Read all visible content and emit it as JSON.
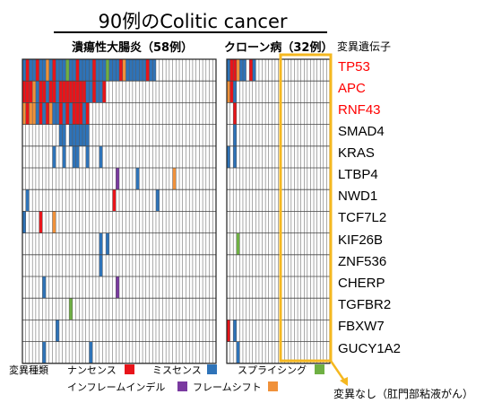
{
  "title": "90例のColitic cancer",
  "groups": {
    "uc": {
      "label": "潰瘍性大腸炎（58例）",
      "count": 58
    },
    "cd": {
      "label": "クローン病（32例）",
      "count": 32
    }
  },
  "gene_column_header": "変異遺伝子",
  "genes": [
    {
      "name": "TP53",
      "color": "#ff0000"
    },
    {
      "name": "APC",
      "color": "#ff0000"
    },
    {
      "name": "RNF43",
      "color": "#ff0000"
    },
    {
      "name": "SMAD4",
      "color": "#000000"
    },
    {
      "name": "KRAS",
      "color": "#000000"
    },
    {
      "name": "LTBP4",
      "color": "#000000"
    },
    {
      "name": "NWD1",
      "color": "#000000"
    },
    {
      "name": "TCF7L2",
      "color": "#000000"
    },
    {
      "name": "KIF26B",
      "color": "#000000"
    },
    {
      "name": "ZNF536",
      "color": "#000000"
    },
    {
      "name": "CHERP",
      "color": "#000000"
    },
    {
      "name": "TGFBR2",
      "color": "#000000"
    },
    {
      "name": "FBXW7",
      "color": "#000000"
    },
    {
      "name": "GUCY1A2",
      "color": "#000000"
    }
  ],
  "legend": {
    "heading": "変異種類",
    "items": [
      {
        "key": "N",
        "label": "ナンセンス",
        "color": "#e8141a"
      },
      {
        "key": "M",
        "label": "ミスセンス",
        "color": "#2e73b8"
      },
      {
        "key": "S",
        "label": "スプライシング",
        "color": "#6fb043"
      },
      {
        "key": "I",
        "label": "インフレームインデル",
        "color": "#7a3aa0"
      },
      {
        "key": "F",
        "label": "フレームシフト",
        "color": "#f0913a"
      }
    ]
  },
  "no_mutation_callout": "変異なし（肛門部粘液がん）",
  "highlight_color": "#f5b820",
  "mutations": {
    "uc": [
      "MNMMNMMFMNMMMSMMNMMMMNMMMSMMMNFMMMMMMNMM",
      "NNNFMNNMNNMNNNNNNNNMMNMMN",
      "FNFFMNMNFMMNMNMNNNMN",
      "...........MM.MMMMMM",
      ".........M..M..MM..M...M",
      "............................I.....M..........F",
      ".M.........................N............M",
      "M....N...F",
      ".......................M.M......",
      ".......................M........",
      "......M.....................I",
      "..............S........................",
      "..........M.....................",
      "......M.............M"
    ],
    "cd": [
      "MNNFMM.NM",
      "FNM",
      "..N",
      "..M",
      "M.M",
      "",
      "",
      "",
      "...S",
      "",
      "",
      "",
      "N.M",
      "...M"
    ]
  }
}
